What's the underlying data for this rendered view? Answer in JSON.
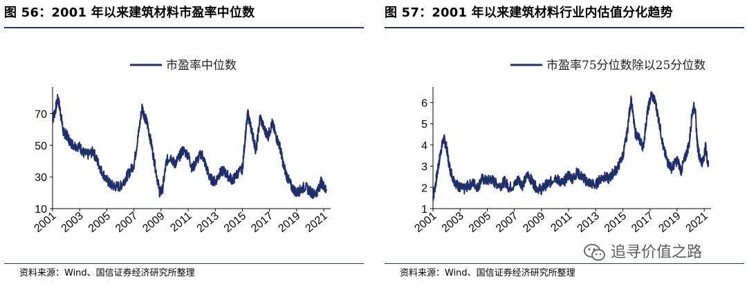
{
  "left": {
    "title": "图 56：2001 年以来建筑材料市盈率中位数",
    "source": "资料来源：Wind、国信证券经济研究所整理"
  },
  "right": {
    "title": "图 57：2001 年以来建筑材料行业内估值分化趋势",
    "source": "资料来源：Wind、国信证券经济研究所整理"
  },
  "watermark": {
    "text": "追寻价值之路",
    "icon": "wechat-icon"
  },
  "colors": {
    "series": "#1f2f6b",
    "rule": "#1f3a6e"
  },
  "chart_data": [
    {
      "type": "line",
      "series": [
        {
          "name": "市盈率中位数",
          "color": "#1f2f6b",
          "x": [
            2001.0,
            2001.2,
            2001.4,
            2001.6,
            2001.8,
            2002.0,
            2002.3,
            2002.6,
            2003.0,
            2003.3,
            2003.6,
            2004.0,
            2004.3,
            2004.6,
            2005.0,
            2005.3,
            2005.6,
            2006.0,
            2006.3,
            2006.6,
            2007.0,
            2007.3,
            2007.6,
            2007.8,
            2008.0,
            2008.3,
            2008.6,
            2008.9,
            2009.1,
            2009.4,
            2009.7,
            2010.0,
            2010.3,
            2010.6,
            2011.0,
            2011.3,
            2011.6,
            2012.0,
            2012.3,
            2012.6,
            2013.0,
            2013.3,
            2013.6,
            2014.0,
            2014.3,
            2014.6,
            2015.0,
            2015.2,
            2015.4,
            2015.6,
            2015.8,
            2016.0,
            2016.3,
            2016.6,
            2016.9,
            2017.2,
            2017.5,
            2017.8,
            2018.0,
            2018.3,
            2018.6,
            2019.0,
            2019.3,
            2019.6,
            2020.0,
            2020.3,
            2020.6,
            2020.8,
            2021.0,
            2021.2
          ],
          "values": [
            66,
            72,
            80,
            70,
            58,
            57,
            52,
            50,
            49,
            45,
            44,
            46,
            40,
            34,
            28,
            25,
            24,
            24,
            28,
            32,
            38,
            55,
            74,
            68,
            63,
            50,
            35,
            20,
            22,
            40,
            43,
            38,
            42,
            47,
            44,
            35,
            40,
            45,
            37,
            29,
            27,
            32,
            34,
            30,
            28,
            32,
            35,
            55,
            70,
            62,
            55,
            46,
            68,
            60,
            56,
            64,
            55,
            48,
            38,
            30,
            24,
            20,
            22,
            24,
            21,
            19,
            22,
            27,
            24,
            22
          ]
        }
      ],
      "xticks": [
        "2001",
        "2003",
        "2005",
        "2007",
        "2009",
        "2011",
        "2013",
        "2015",
        "2017",
        "2019",
        "2021"
      ],
      "yticks": [
        "10",
        "30",
        "50",
        "70"
      ],
      "ylim": [
        10,
        85
      ],
      "xlim": [
        2001,
        2021.5
      ],
      "legend": "top-center"
    },
    {
      "type": "line",
      "series": [
        {
          "name": "市盈率75分位数除以25分位数",
          "color": "#1f2f6b",
          "x": [
            2001.0,
            2001.2,
            2001.4,
            2001.6,
            2001.8,
            2002.0,
            2002.2,
            2002.5,
            2002.8,
            2003.0,
            2003.3,
            2003.6,
            2004.0,
            2004.3,
            2004.6,
            2005.0,
            2005.3,
            2005.6,
            2006.0,
            2006.3,
            2006.6,
            2007.0,
            2007.3,
            2007.6,
            2008.0,
            2008.3,
            2008.6,
            2009.0,
            2009.3,
            2009.6,
            2010.0,
            2010.3,
            2010.6,
            2011.0,
            2011.3,
            2011.6,
            2012.0,
            2012.3,
            2012.6,
            2013.0,
            2013.3,
            2013.6,
            2014.0,
            2014.3,
            2014.6,
            2015.0,
            2015.3,
            2015.6,
            2015.9,
            2016.2,
            2016.5,
            2016.8,
            2017.1,
            2017.4,
            2017.7,
            2018.0,
            2018.3,
            2018.6,
            2019.0,
            2019.3,
            2019.6,
            2019.9,
            2020.1,
            2020.3,
            2020.5,
            2020.7,
            2020.9,
            2021.1,
            2021.3
          ],
          "values": [
            1.5,
            2.2,
            3.0,
            3.8,
            4.3,
            3.9,
            3.0,
            2.4,
            2.1,
            2.0,
            1.9,
            2.1,
            2.2,
            2.0,
            2.4,
            2.3,
            2.4,
            2.2,
            2.1,
            2.3,
            2.0,
            2.1,
            2.4,
            2.1,
            2.6,
            2.3,
            2.0,
            1.9,
            2.1,
            2.2,
            2.5,
            2.3,
            2.2,
            2.6,
            2.4,
            2.7,
            2.5,
            2.3,
            2.2,
            2.1,
            2.4,
            2.5,
            2.4,
            2.7,
            2.9,
            3.5,
            4.5,
            6.2,
            4.6,
            4.3,
            3.9,
            5.5,
            6.4,
            6.0,
            5.0,
            3.8,
            3.2,
            2.9,
            3.3,
            2.8,
            3.4,
            4.1,
            5.5,
            5.9,
            4.0,
            3.3,
            3.2,
            3.9,
            3.0
          ]
        }
      ],
      "xticks": [
        "2001",
        "2003",
        "2005",
        "2007",
        "2009",
        "2011",
        "2013",
        "2015",
        "2017",
        "2019",
        "2021"
      ],
      "yticks": [
        "1",
        "2",
        "3",
        "4",
        "5",
        "6"
      ],
      "ylim": [
        1,
        6.6
      ],
      "xlim": [
        2001,
        2021.5
      ],
      "legend": "top-center"
    }
  ]
}
